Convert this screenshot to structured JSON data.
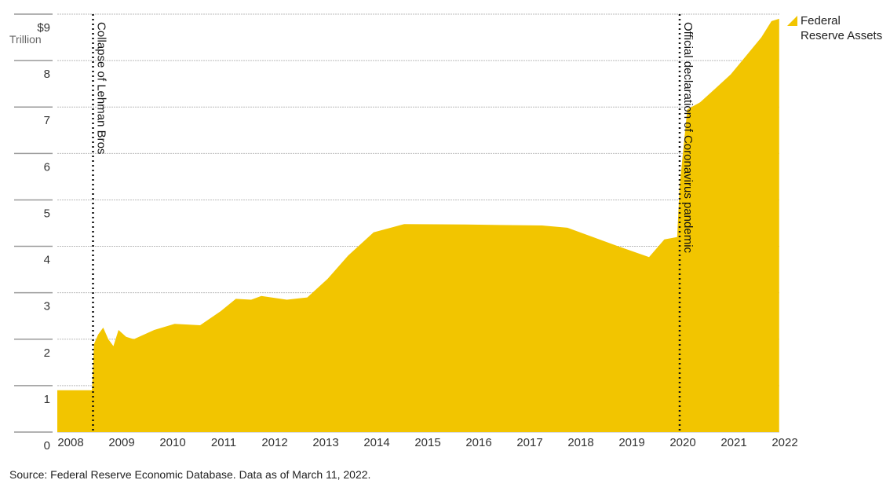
{
  "chart_data": {
    "type": "area",
    "title": "",
    "ylabel": "Trillion",
    "y_unit_prefix": "$",
    "ylim": [
      0,
      9
    ],
    "yticks": [
      0,
      1,
      2,
      3,
      4,
      5,
      6,
      7,
      8,
      9
    ],
    "ytick_labels": [
      "0",
      "1",
      "2",
      "3",
      "4",
      "5",
      "6",
      "7",
      "8",
      "$9"
    ],
    "xlim": [
      2008.0,
      2022.15
    ],
    "xtick_labels": [
      "2008",
      "2009",
      "2010",
      "2011",
      "2012",
      "2013",
      "2014",
      "2015",
      "2016",
      "2017",
      "2018",
      "2019",
      "2020",
      "2021",
      "2022"
    ],
    "grid": true,
    "legend": {
      "position": "top-right",
      "label": "Federal Reserve Assets"
    },
    "color": "#f2c500",
    "series": [
      {
        "name": "Federal Reserve Assets",
        "x": [
          2008.0,
          2008.68,
          2008.72,
          2008.8,
          2008.9,
          2009.0,
          2009.1,
          2009.2,
          2009.35,
          2009.5,
          2009.9,
          2010.3,
          2010.8,
          2011.2,
          2011.5,
          2011.8,
          2012.0,
          2012.5,
          2012.9,
          2013.3,
          2013.7,
          2014.2,
          2014.8,
          2016.0,
          2017.5,
          2018.0,
          2018.5,
          2019.0,
          2019.6,
          2019.9,
          2020.15,
          2020.2,
          2020.35,
          2020.6,
          2020.9,
          2021.2,
          2021.5,
          2021.8,
          2022.0,
          2022.15
        ],
        "values": [
          0.9,
          0.9,
          1.9,
          2.1,
          2.25,
          2.0,
          1.85,
          2.2,
          2.05,
          2.0,
          2.2,
          2.33,
          2.3,
          2.6,
          2.87,
          2.85,
          2.93,
          2.85,
          2.9,
          3.3,
          3.8,
          4.3,
          4.48,
          4.47,
          4.45,
          4.4,
          4.2,
          4.0,
          3.77,
          4.15,
          4.2,
          5.3,
          6.95,
          7.1,
          7.4,
          7.7,
          8.1,
          8.5,
          8.85,
          8.9
        ]
      }
    ],
    "annotations": [
      {
        "x": 2008.7,
        "label": "Collapse of Lehman Bros"
      },
      {
        "x": 2020.2,
        "label": "Official declaration of Coronavirus pandemic"
      }
    ]
  },
  "source": "Source: Federal Reserve Economic Database. Data as of March 11, 2022."
}
